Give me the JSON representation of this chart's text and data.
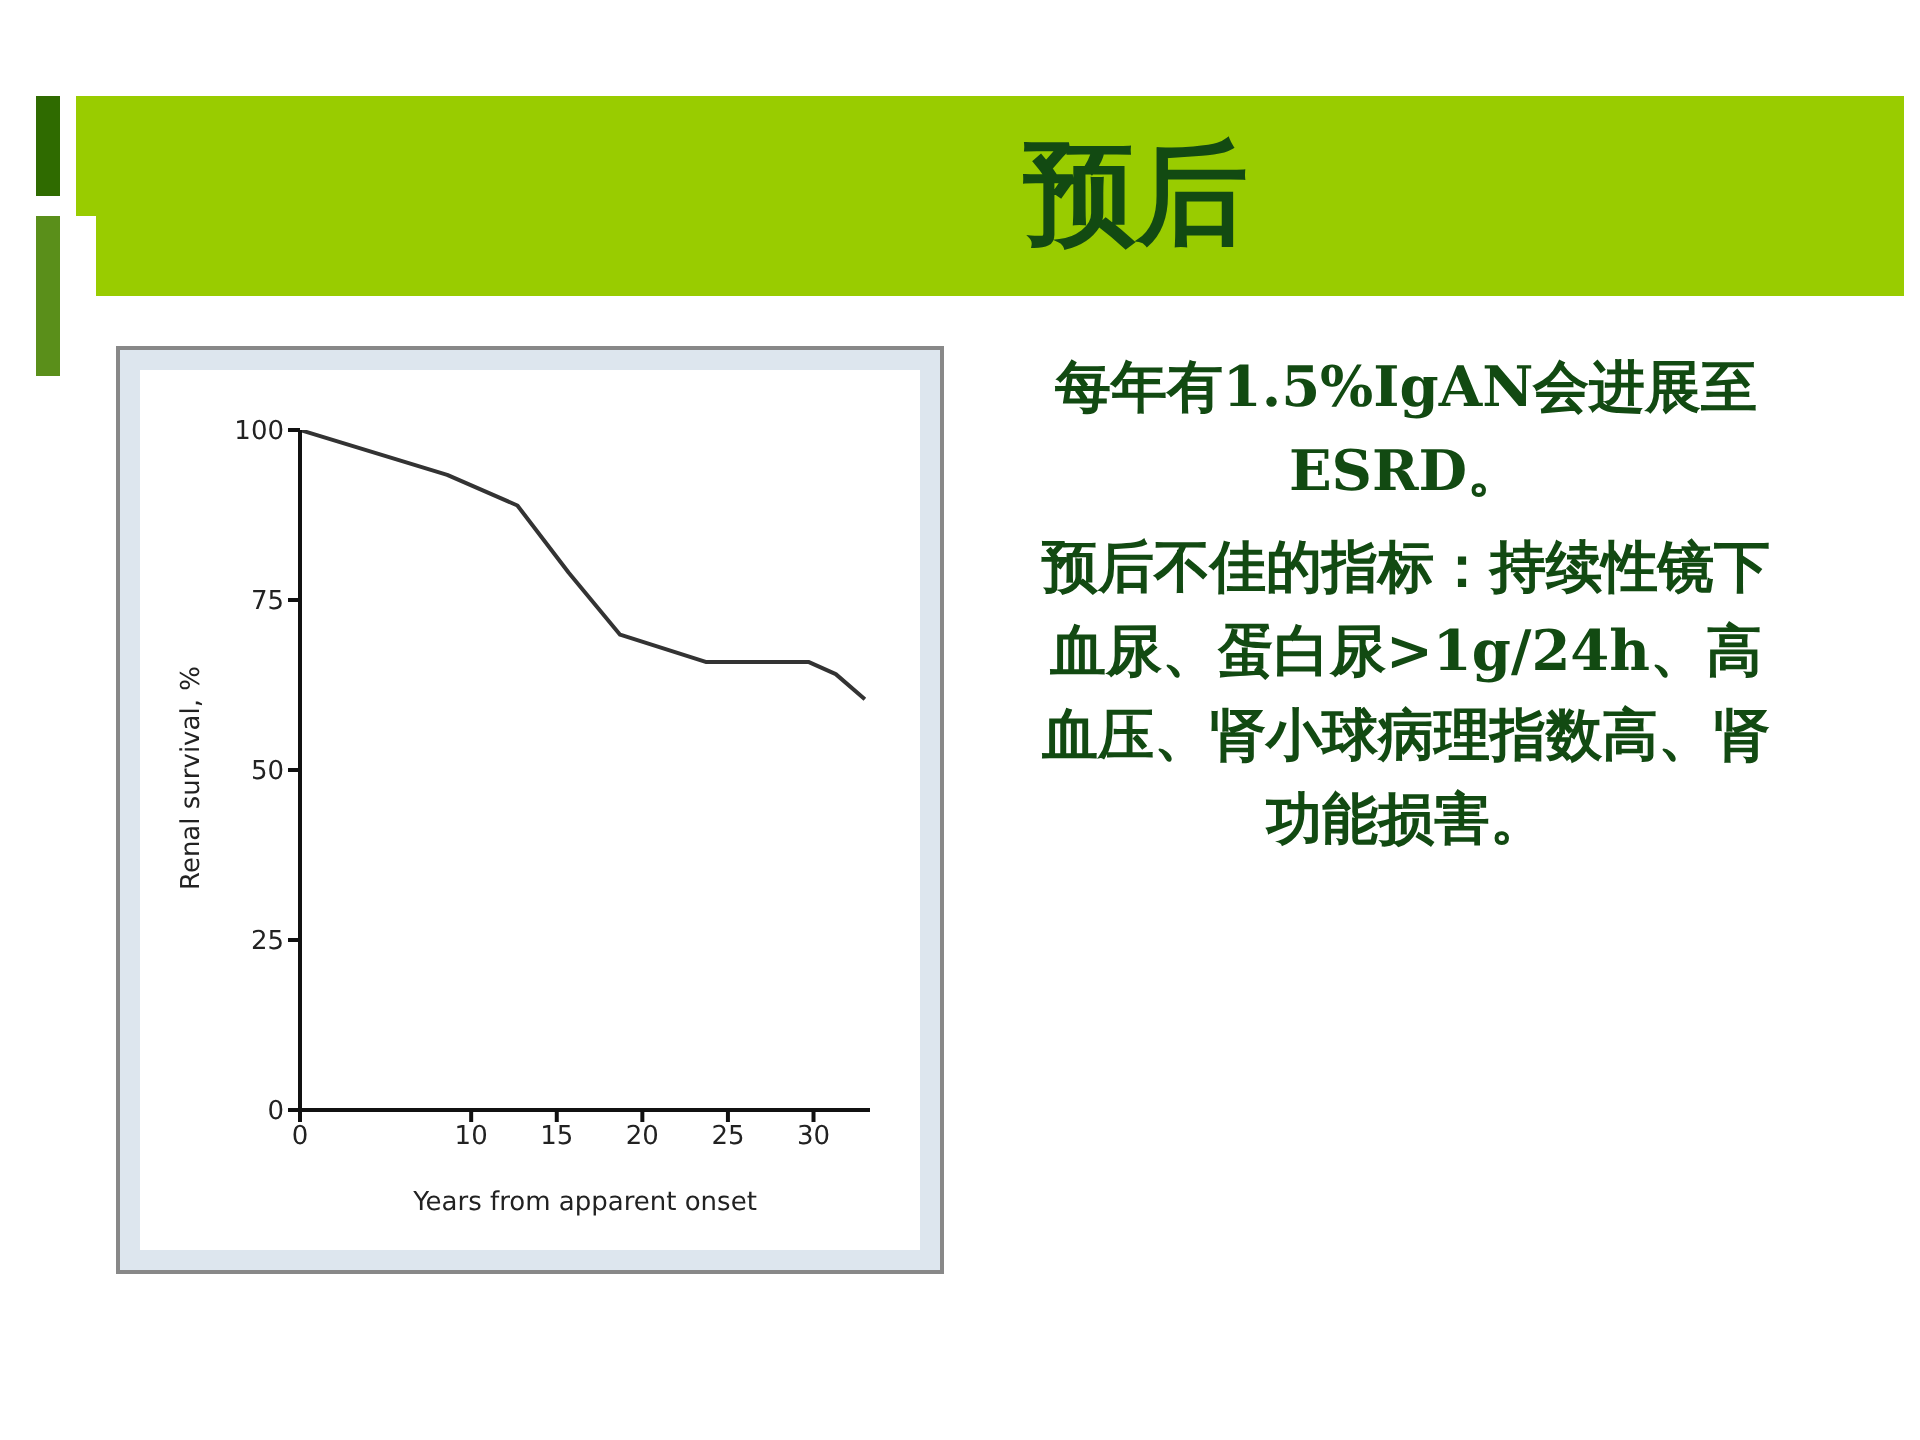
{
  "chart_data": {
    "type": "line",
    "title": "预后",
    "annotations": [
      "每年有1.5%IgAN会进展至ESRD。",
      "预后不佳的指标：持续性镜下血尿、蛋白尿>1g/24h、高血压、肾小球病理指数高、肾功能损害。"
    ],
    "xlabel": "Years from apparent onset",
    "ylabel": "Renal survival, %",
    "x": [
      0,
      8.6,
      12.7,
      15.7,
      18.7,
      23.7,
      29.7,
      31.3,
      33
    ],
    "series": [
      {
        "color": "#333333",
        "values": [
          100,
          93.4,
          88.9,
          79,
          69.9,
          65.9,
          65.9,
          64.1,
          60.4
        ]
      }
    ],
    "xlim": [
      0,
      33.3
    ],
    "xticks": [
      0,
      10,
      15,
      20,
      25,
      30
    ],
    "ylim": [
      0,
      100
    ],
    "yticks": [
      0,
      25,
      50,
      75,
      100
    ],
    "grid": false,
    "legend": false,
    "marker": "none",
    "line_style": "solid"
  }
}
